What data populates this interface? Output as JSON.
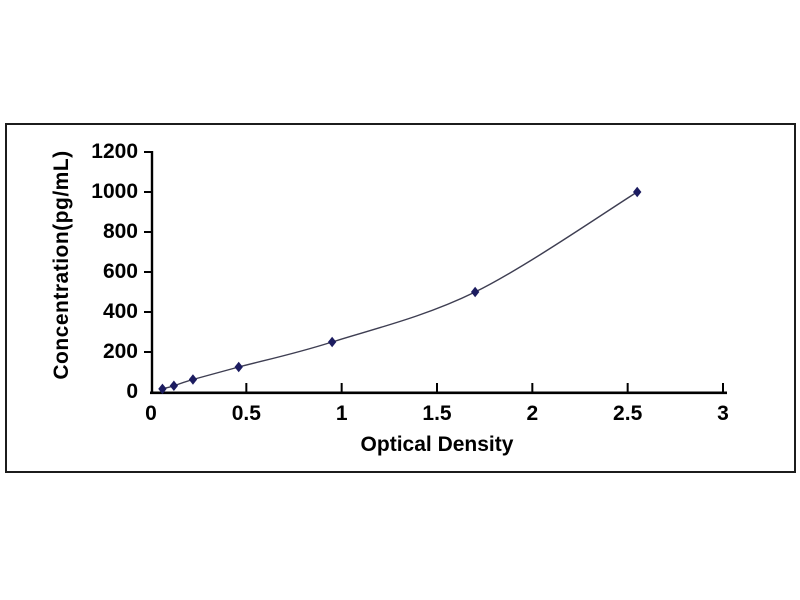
{
  "figure": {
    "background_color": "#ffffff",
    "frame_border_color": "#1c1c1c"
  },
  "chart_data": {
    "type": "line",
    "subtype": "scatter-smooth-with-markers",
    "title": "",
    "xlabel": "Optical Density",
    "ylabel": "Concentration(pg/mL)",
    "x": [
      0.06,
      0.12,
      0.22,
      0.46,
      0.95,
      1.7,
      2.55
    ],
    "y": [
      15.6,
      31.2,
      62.5,
      125,
      250,
      500,
      1000
    ],
    "x_ticks": [
      0,
      0.5,
      1,
      1.5,
      2,
      2.5,
      3
    ],
    "x_tick_labels": [
      "0",
      "0.5",
      "1",
      "1.5",
      "2",
      "2.5",
      "3"
    ],
    "y_ticks": [
      0,
      200,
      400,
      600,
      800,
      1000,
      1200
    ],
    "y_tick_labels": [
      "0",
      "200",
      "400",
      "600",
      "800",
      "1000",
      "1200"
    ],
    "xlim": [
      0,
      3
    ],
    "ylim": [
      0,
      1200
    ],
    "grid": false,
    "legend": false,
    "axis_color": "#000000",
    "line_color": "#3e3e52",
    "marker_color": "#1c1c60",
    "marker_shape": "diamond"
  }
}
